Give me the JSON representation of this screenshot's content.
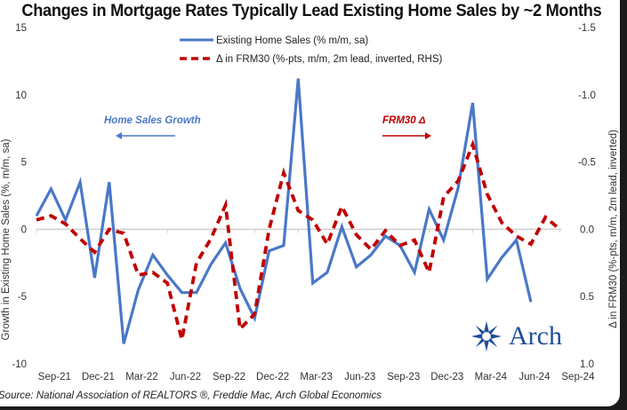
{
  "title": "Changes in Mortgage Rates Typically Lead Existing Home Sales by ~2 Months",
  "source": "Source: National Association of REALTORS ®, Freddie Mac, Arch Global Economics",
  "logo": {
    "icon": "arch-star-icon",
    "text": "Arch"
  },
  "annotations": {
    "left": "Home Sales Growth",
    "right": "FRM30 Δ"
  },
  "colors": {
    "blue": "#4a78c8",
    "red": "#c00000",
    "zero_line": "#d0d0d0"
  },
  "chart_data": {
    "type": "line",
    "title": "Changes in Mortgage Rates Typically Lead Existing Home Sales by ~2 Months",
    "xlabel": "",
    "ylabel": "Growth in Existing Home Sales (%, m/m, sa)",
    "y2label": "Δ in FRM30 (%-pts, m/m, 2m lead, inverted)",
    "ylim": [
      -10,
      15
    ],
    "y2lim": [
      1.0,
      -1.5
    ],
    "y2_inverted": true,
    "yticks": [
      "15",
      "10",
      "5",
      "0",
      "-5",
      "-10"
    ],
    "y2ticks": [
      "-1.5",
      "-1.0",
      "-0.5",
      "0.0",
      "0.5",
      "1.0"
    ],
    "x_tick_labels": [
      "Sep-21",
      "Dec-21",
      "Mar-22",
      "Jun-22",
      "Sep-22",
      "Dec-22",
      "Mar-23",
      "Jun-23",
      "Sep-23",
      "Dec-23",
      "Mar-24",
      "Jun-24",
      "Sep-24"
    ],
    "x_start": "Aug-21",
    "grid": false,
    "legend_position": "top-center",
    "series": [
      {
        "name": "Existing Home Sales (% m/m, sa)",
        "axis": "left",
        "style": "solid",
        "color": "#4a78c8",
        "values": [
          1.0,
          3.0,
          0.7,
          3.5,
          -3.6,
          3.5,
          -8.5,
          -4.5,
          -1.9,
          -3.4,
          -4.7,
          -4.7,
          -2.6,
          -1.0,
          -4.4,
          -6.6,
          -1.6,
          -1.2,
          11.2,
          -4.0,
          -3.2,
          0.2,
          -2.8,
          -1.9,
          -0.5,
          -1.2,
          -3.2,
          1.5,
          -0.8,
          3.1,
          9.4,
          -3.7,
          -2.1,
          -0.8,
          -5.4
        ]
      },
      {
        "name": "Δ in FRM30 (%-pts, m/m, 2m lead, inverted, RHS)",
        "axis": "right",
        "style": "dashed",
        "color": "#c00000",
        "values": [
          -0.07,
          -0.1,
          -0.04,
          0.07,
          0.17,
          0.0,
          0.03,
          0.34,
          0.32,
          0.4,
          0.82,
          0.25,
          0.07,
          -0.18,
          0.74,
          0.63,
          0.0,
          -0.42,
          -0.14,
          -0.07,
          0.11,
          -0.17,
          0.04,
          0.15,
          0.01,
          0.12,
          0.08,
          0.32,
          -0.24,
          -0.36,
          -0.63,
          -0.26,
          -0.05,
          0.05,
          0.11,
          -0.09,
          0.0
        ]
      }
    ]
  }
}
